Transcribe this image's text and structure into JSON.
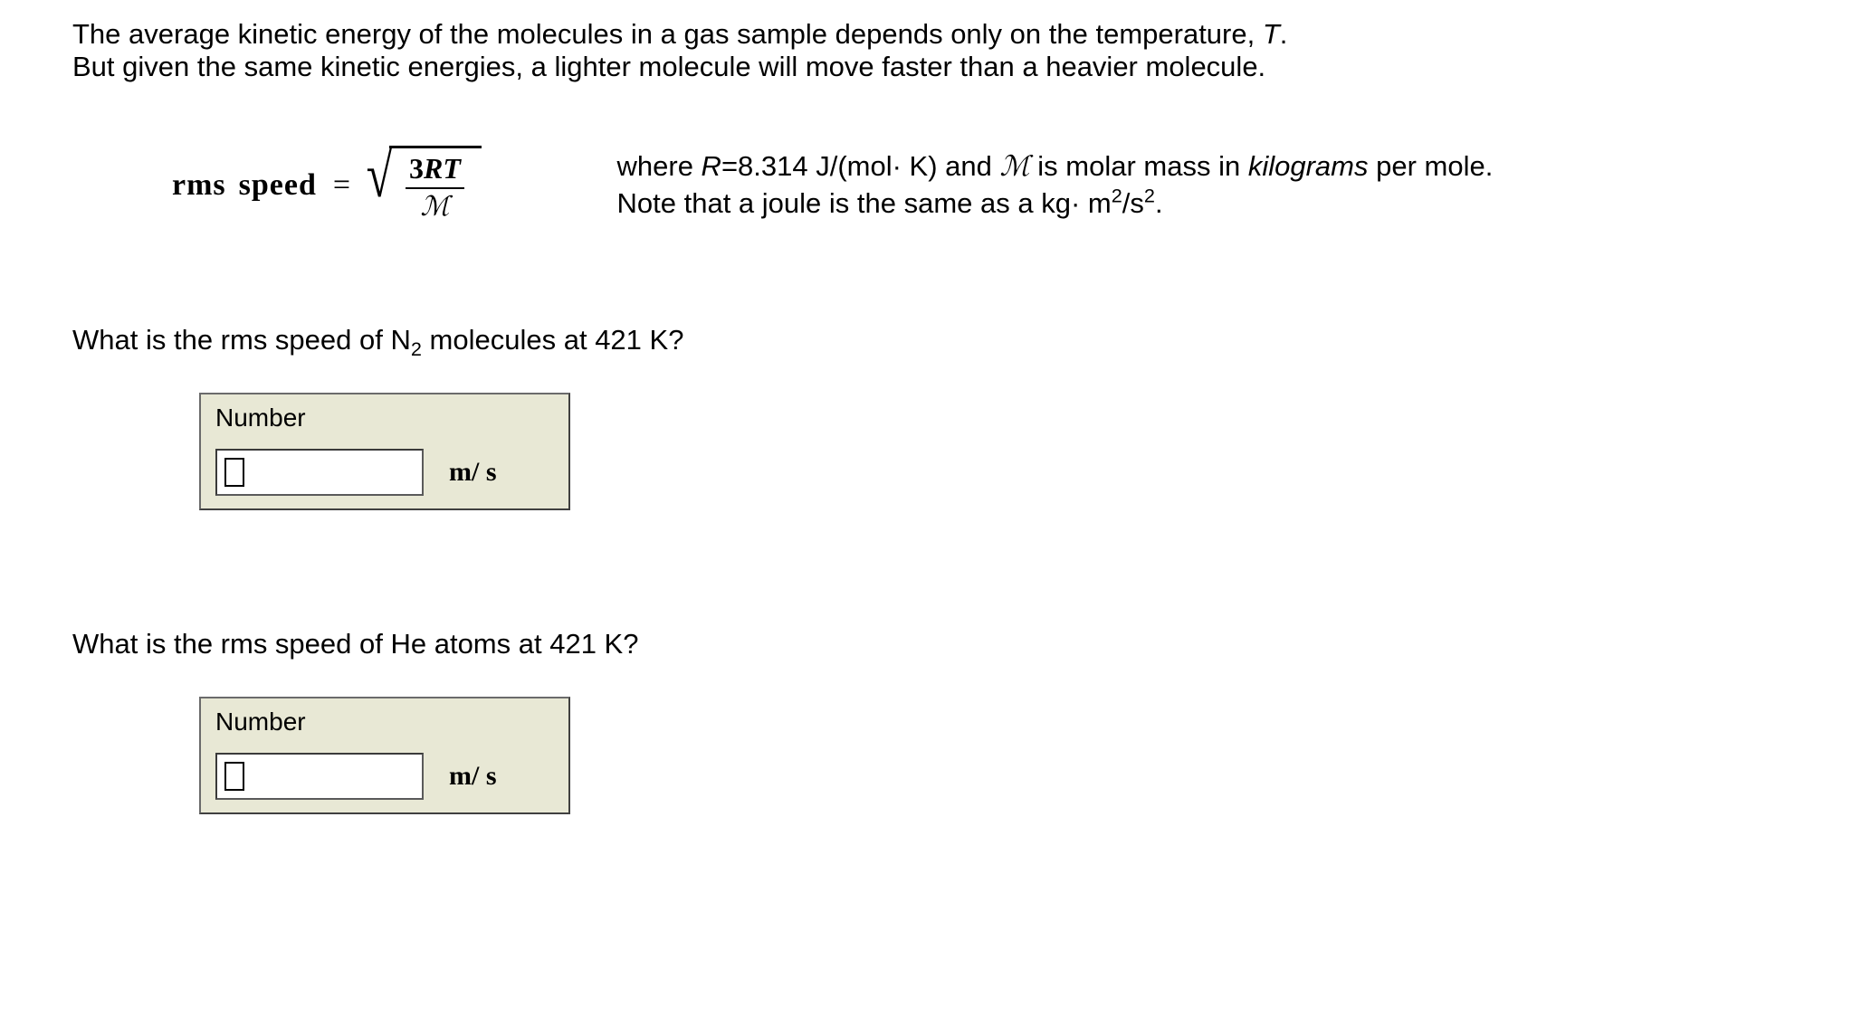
{
  "intro": {
    "line1_a": "The average kinetic energy of the molecules in a gas sample depends only on the temperature, ",
    "line1_T": "T",
    "line1_b": ".",
    "line2": "But given the same kinetic energies, a lighter molecule will move faster than a heavier molecule."
  },
  "formula": {
    "label_rms": "rms",
    "label_speed": "speed",
    "equals": "=",
    "numerator_3": "3",
    "numerator_R": "R",
    "numerator_T": "T",
    "denominator": "ℳ",
    "where_a": "where ",
    "where_R": "R",
    "where_b": "=8.314 J/(mol· K) and ",
    "where_M": "ℳ",
    "where_c": " is molar mass in ",
    "where_kg": "kilograms",
    "where_d": " per mole.",
    "note_a": "Note that a joule is the same as a kg· m",
    "note_sup": "2",
    "note_b": "/s",
    "note_sup2": "2",
    "note_c": "."
  },
  "question1": {
    "a": "What is the rms speed of N",
    "sub": "2",
    "b": " molecules at 421 K?",
    "box_label": "Number",
    "unit": "m/ s",
    "input_value": ""
  },
  "question2": {
    "a": "What is the rms speed of He atoms at 421 K?",
    "box_label": "Number",
    "unit": "m/ s",
    "input_value": ""
  },
  "colors": {
    "background": "#ffffff",
    "text": "#000000",
    "box_bg": "#e8e8d5",
    "box_border": "#6b6b6b",
    "input_bg": "#ffffff",
    "input_border": "#5a5a5a"
  },
  "fonts": {
    "body": "Arial",
    "math": "Times New Roman",
    "body_size_pt": 23,
    "formula_size_pt": 25
  }
}
